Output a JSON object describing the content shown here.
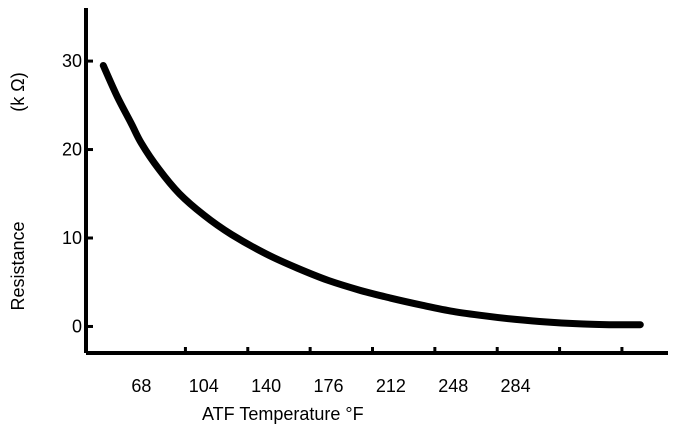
{
  "chart_data": {
    "type": "line",
    "title": "",
    "xlabel": "ATF Temperature °F",
    "ylabel": "Resistance",
    "yunit": "(k Ω)",
    "x_ticks": [
      {
        "value": 68,
        "label": "68"
      },
      {
        "value": 104,
        "label": "104"
      },
      {
        "value": 140,
        "label": "140"
      },
      {
        "value": 176,
        "label": "176"
      },
      {
        "value": 212,
        "label": "212"
      },
      {
        "value": 248,
        "label": "248"
      },
      {
        "value": 284,
        "label": "284"
      },
      {
        "value": 320,
        "label": ""
      },
      {
        "value": 356,
        "label": ""
      }
    ],
    "y_ticks": [
      {
        "value": 0,
        "label": "0"
      },
      {
        "value": 10,
        "label": "10"
      },
      {
        "value": 20,
        "label": "20"
      },
      {
        "value": 30,
        "label": "30"
      }
    ],
    "xlim": [
      36,
      372
    ],
    "ylim": [
      -3,
      36
    ],
    "grid": false,
    "series": [
      {
        "color": "#000000",
        "x": [
          46,
          54,
          62,
          68,
          78,
          90,
          104,
          120,
          140,
          158,
          176,
          194,
          212,
          230,
          248,
          266,
          284,
          302,
          320,
          338,
          356
        ],
        "y": [
          29.5,
          26.0,
          23.0,
          20.7,
          17.8,
          15.0,
          12.6,
          10.4,
          8.2,
          6.6,
          5.2,
          4.1,
          3.2,
          2.4,
          1.7,
          1.2,
          0.8,
          0.5,
          0.3,
          0.2,
          0.2
        ]
      }
    ]
  }
}
